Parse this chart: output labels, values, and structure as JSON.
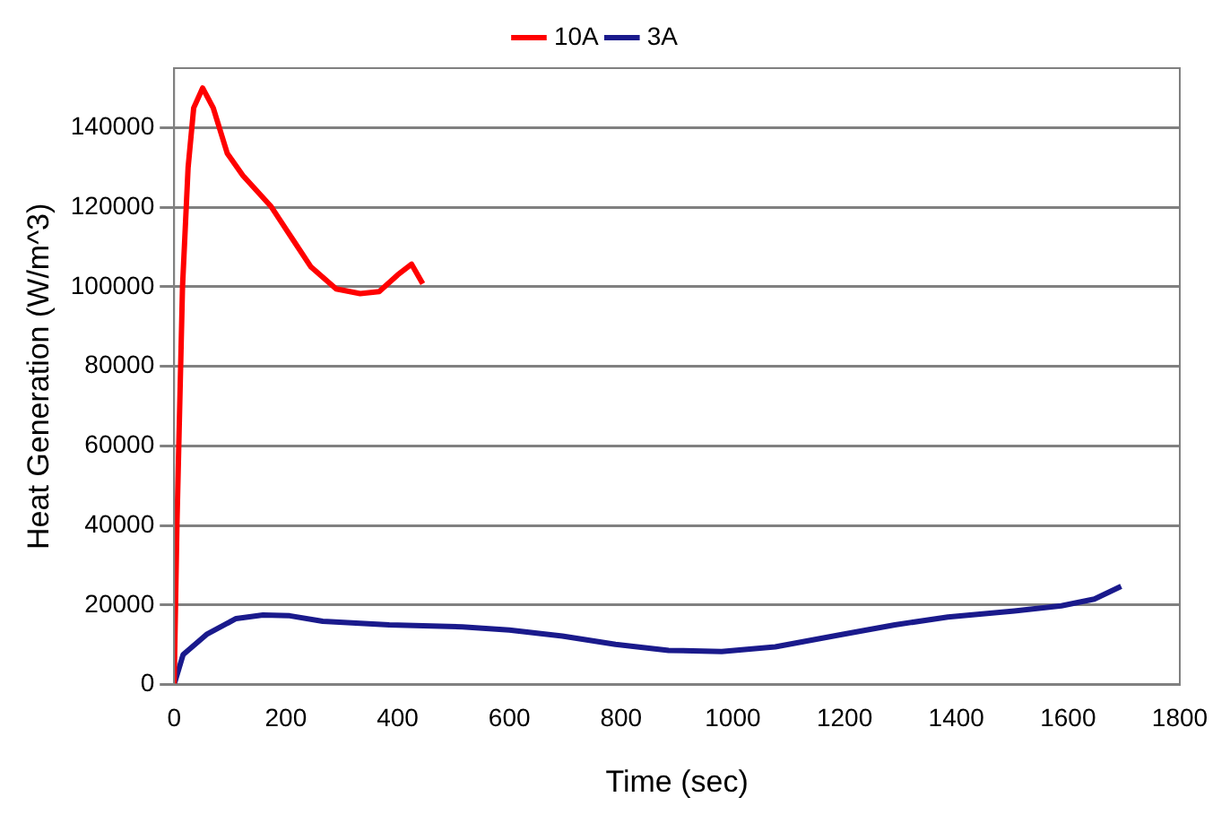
{
  "chart_data": {
    "type": "line",
    "xlabel": "Time (sec)",
    "ylabel": "Heat Generation (W/m^3)",
    "xlim": [
      0,
      1800
    ],
    "xticks": [
      0,
      200,
      400,
      600,
      800,
      1000,
      1200,
      1400,
      1600,
      1800
    ],
    "ylim": [
      0,
      155000
    ],
    "yticks": [
      0,
      20000,
      40000,
      60000,
      80000,
      100000,
      120000,
      140000
    ],
    "grid": "y",
    "legend": "top",
    "line_style": "solid",
    "marker": "none",
    "series": [
      {
        "name": "10A",
        "color": "#ff0000",
        "x": [
          0,
          5,
          15,
          25,
          35,
          51,
          70,
          95,
          123,
          173,
          212,
          245,
          290,
          333,
          367,
          400,
          425,
          445
        ],
        "values": [
          0,
          40000,
          100000,
          130000,
          145000,
          150000,
          145000,
          133600,
          128000,
          120300,
          112000,
          105000,
          99500,
          98300,
          98800,
          103000,
          105700,
          100800
        ]
      },
      {
        "name": "3A",
        "color": "#1a1a8c",
        "x": [
          0,
          16,
          58,
          111,
          159,
          207,
          266,
          385,
          516,
          600,
          695,
          790,
          885,
          980,
          1076,
          1195,
          1290,
          1385,
          1504,
          1588,
          1647,
          1695
        ],
        "values": [
          0,
          7500,
          12600,
          16600,
          17500,
          17300,
          15900,
          15000,
          14500,
          13700,
          12200,
          10100,
          8600,
          8300,
          9500,
          12600,
          15000,
          17000,
          18500,
          19800,
          21500,
          24700
        ]
      }
    ]
  }
}
